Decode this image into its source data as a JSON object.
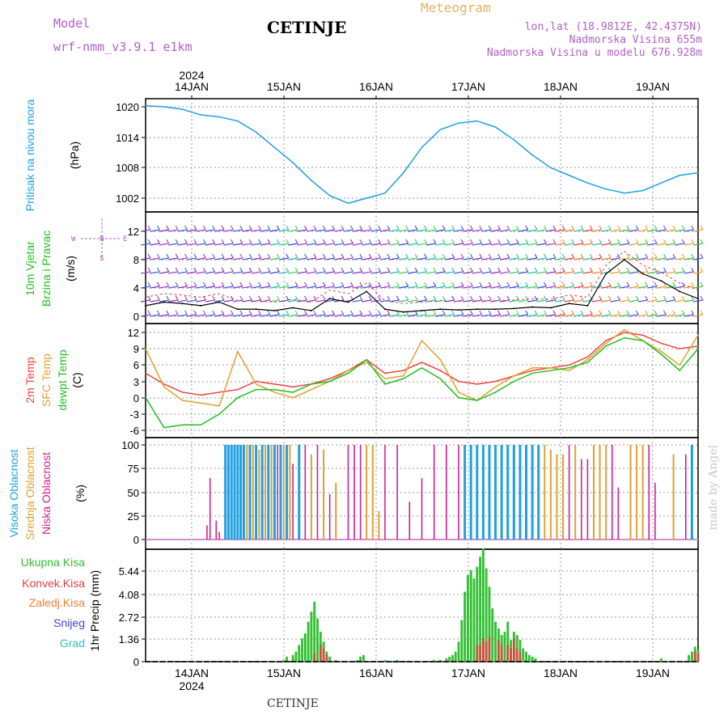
{
  "header": {
    "model_label": "Model",
    "model_name": "wrf-nmm_v3.9.1 e1km",
    "title": "CETINJE",
    "meteogram": "Meteogram",
    "lonlat": "lon,lat (18.9812E, 42.4375N)",
    "elev": "Nadmorska Visina 655m",
    "elev_model": "Nadmorska Visina u modelu 676.928m"
  },
  "footer": {
    "station": "CETINJE",
    "watermark": "made by Angel"
  },
  "colors": {
    "pressure": "#1fa0e0",
    "temp2m": "#f04040",
    "sfc": "#e0a030",
    "dew": "#20c020",
    "high": "#20a0e0",
    "mid": "#e0a030",
    "low": "#d02090",
    "precip": "#30c030",
    "conv": "#e04040"
  },
  "chart_data": [
    {
      "type": "line",
      "panel": "pressure",
      "ylabel_lines": [
        "Pritisak na nivou mora",
        "(hPa)"
      ],
      "yticks": [
        "1020",
        "1014",
        "1008",
        "1002"
      ],
      "ylim": [
        999,
        1022
      ],
      "x_days": [
        "14JAN",
        "15JAN",
        "16JAN",
        "17JAN",
        "18JAN",
        "19JAN"
      ],
      "top_year": "2024",
      "x": [
        0,
        6,
        12,
        18,
        24,
        30,
        36,
        42,
        48,
        54,
        60,
        66,
        72,
        78,
        84,
        90,
        96,
        102,
        108,
        114,
        120,
        126,
        132,
        138,
        144,
        150,
        156,
        162,
        168,
        174,
        180
      ],
      "values": [
        1020.2,
        1020.0,
        1019.5,
        1018.4,
        1018.0,
        1017.2,
        1015.0,
        1012.0,
        1009.0,
        1005.5,
        1002.5,
        1001.0,
        1002.0,
        1003.0,
        1007.0,
        1012.0,
        1015.5,
        1016.8,
        1017.2,
        1016.0,
        1013.5,
        1010.5,
        1008.0,
        1006.5,
        1005.0,
        1003.8,
        1003.0,
        1003.5,
        1005.0,
        1006.5,
        1007.0
      ]
    },
    {
      "type": "line",
      "panel": "wind",
      "ylabel_lines": [
        "10m Vjetar",
        "Brzina i Pravac",
        "(m/s)"
      ],
      "compass": {
        "n": "N",
        "s": "S",
        "e": "E",
        "w": "W"
      },
      "yticks": [
        "12",
        "8",
        "4",
        "0"
      ],
      "ylim": [
        -1,
        14
      ],
      "x": [
        0,
        6,
        12,
        18,
        24,
        30,
        36,
        42,
        48,
        54,
        60,
        66,
        72,
        78,
        84,
        90,
        96,
        102,
        108,
        114,
        120,
        126,
        132,
        138,
        144,
        150,
        156,
        162,
        168,
        174,
        180
      ],
      "values": [
        1.5,
        2.0,
        1.8,
        1.5,
        2.0,
        1.0,
        1.0,
        0.8,
        1.2,
        0.8,
        2.5,
        2.0,
        3.5,
        1.0,
        0.6,
        0.8,
        1.0,
        0.9,
        1.0,
        1.0,
        1.1,
        1.3,
        1.2,
        1.8,
        1.5,
        6.0,
        8.0,
        6.0,
        5.0,
        3.5,
        2.5
      ]
    },
    {
      "type": "line",
      "panel": "temperature",
      "ylabel_lines": [
        "2m Temp",
        "SFC Temp",
        "dewpt Temp",
        "(C)"
      ],
      "yticks": [
        "12",
        "9",
        "6",
        "3",
        "0",
        "-3",
        "-6"
      ],
      "ylim": [
        -7,
        13
      ],
      "x": [
        0,
        6,
        12,
        18,
        24,
        30,
        36,
        42,
        48,
        54,
        60,
        66,
        72,
        78,
        84,
        90,
        96,
        102,
        108,
        114,
        120,
        126,
        132,
        138,
        144,
        150,
        156,
        162,
        168,
        174,
        180
      ],
      "series": [
        {
          "name": "2m Temp",
          "values": [
            4.5,
            2.5,
            1.0,
            0.5,
            1.0,
            1.5,
            3.0,
            2.5,
            2.0,
            2.5,
            3.5,
            5.0,
            7.0,
            4.5,
            5.0,
            6.5,
            5.0,
            3.0,
            2.5,
            3.0,
            4.0,
            5.0,
            5.5,
            6.0,
            7.5,
            10.5,
            12.0,
            11.5,
            10.0,
            9.0,
            9.5
          ]
        },
        {
          "name": "SFC Temp",
          "values": [
            9.0,
            2.0,
            -0.5,
            -1.0,
            -1.5,
            8.5,
            2.5,
            1.0,
            0.0,
            1.5,
            3.0,
            5.0,
            6.5,
            3.5,
            4.0,
            10.5,
            7.0,
            1.0,
            -0.5,
            2.0,
            4.0,
            5.5,
            5.5,
            5.0,
            7.0,
            10.0,
            12.5,
            10.5,
            8.5,
            6.0,
            11.5
          ]
        },
        {
          "name": "dewpt Temp",
          "values": [
            0.0,
            -5.5,
            -5.0,
            -5.0,
            -3.0,
            0.0,
            1.5,
            1.5,
            1.0,
            2.5,
            3.0,
            4.5,
            7.0,
            2.5,
            3.5,
            5.5,
            3.5,
            0.0,
            -0.5,
            1.0,
            3.0,
            4.5,
            5.0,
            5.5,
            6.5,
            9.5,
            11.0,
            10.5,
            8.0,
            5.0,
            9.0
          ]
        }
      ]
    },
    {
      "type": "bar",
      "panel": "cloud",
      "ylabel_lines": [
        "Visoka Oblacnost",
        "Srednja Oblacnost",
        "Niska Oblacnost",
        "(%)"
      ],
      "yticks": [
        "100",
        "75",
        "50",
        "25",
        "0"
      ],
      "ylim": [
        0,
        100
      ],
      "high": [
        [
          26,
          100
        ],
        [
          27,
          100
        ],
        [
          28,
          100
        ],
        [
          29,
          100
        ],
        [
          30,
          100
        ],
        [
          31,
          100
        ],
        [
          32,
          100
        ],
        [
          34,
          100
        ],
        [
          36,
          100
        ],
        [
          38,
          100
        ],
        [
          40,
          100
        ],
        [
          42,
          100
        ],
        [
          44,
          100
        ],
        [
          46,
          100
        ],
        [
          50,
          100
        ],
        [
          104,
          100
        ],
        [
          106,
          100
        ],
        [
          108,
          100
        ],
        [
          110,
          100
        ],
        [
          112,
          100
        ],
        [
          114,
          100
        ],
        [
          116,
          100
        ],
        [
          118,
          100
        ],
        [
          120,
          100
        ],
        [
          122,
          100
        ],
        [
          124,
          100
        ],
        [
          126,
          100
        ],
        [
          128,
          100
        ],
        [
          178,
          100
        ]
      ],
      "mid": [
        [
          33,
          100
        ],
        [
          35,
          100
        ],
        [
          37,
          95
        ],
        [
          39,
          100
        ],
        [
          41,
          100
        ],
        [
          45,
          100
        ],
        [
          47,
          100
        ],
        [
          54,
          90
        ],
        [
          58,
          95
        ],
        [
          62,
          60
        ],
        [
          72,
          100
        ],
        [
          74,
          100
        ],
        [
          76,
          30
        ],
        [
          130,
          100
        ],
        [
          132,
          95
        ],
        [
          134,
          90
        ],
        [
          136,
          90
        ],
        [
          140,
          100
        ],
        [
          146,
          100
        ],
        [
          148,
          100
        ],
        [
          150,
          100
        ],
        [
          158,
          100
        ],
        [
          160,
          100
        ],
        [
          162,
          100
        ],
        [
          172,
          90
        ]
      ],
      "low": [
        [
          20,
          15
        ],
        [
          21,
          65
        ],
        [
          23,
          20
        ],
        [
          24,
          8
        ],
        [
          43,
          100
        ],
        [
          48,
          80
        ],
        [
          52,
          100
        ],
        [
          56,
          100
        ],
        [
          60,
          48
        ],
        [
          66,
          100
        ],
        [
          68,
          100
        ],
        [
          70,
          100
        ],
        [
          78,
          100
        ],
        [
          82,
          100
        ],
        [
          86,
          40
        ],
        [
          90,
          65
        ],
        [
          94,
          100
        ],
        [
          98,
          100
        ],
        [
          102,
          100
        ],
        [
          138,
          100
        ],
        [
          142,
          85
        ],
        [
          144,
          85
        ],
        [
          152,
          100
        ],
        [
          154,
          55
        ],
        [
          164,
          100
        ],
        [
          166,
          60
        ],
        [
          176,
          90
        ]
      ]
    },
    {
      "type": "bar",
      "panel": "precip",
      "ylabel_lines": [
        "1hr Precip (mm)"
      ],
      "legend": [
        "Ukupna Kisa",
        "Konvek.Kisa",
        "Zaledj.Kisa",
        "Snijeg",
        "Grad"
      ],
      "yticks": [
        "5.44",
        "4.08",
        "2.72",
        "1.36",
        "0"
      ],
      "ylim": [
        0,
        6.8
      ],
      "total": [
        [
          45,
          0.1
        ],
        [
          46,
          0.3
        ],
        [
          48,
          0.4
        ],
        [
          49,
          0.6
        ],
        [
          50,
          1.0
        ],
        [
          51,
          1.4
        ],
        [
          52,
          1.7
        ],
        [
          53,
          2.4
        ],
        [
          54,
          3.0
        ],
        [
          55,
          3.6
        ],
        [
          56,
          2.6
        ],
        [
          57,
          1.8
        ],
        [
          58,
          1.2
        ],
        [
          59,
          0.6
        ],
        [
          60,
          0.3
        ],
        [
          62,
          0.1
        ],
        [
          69,
          0.1
        ],
        [
          70,
          0.3
        ],
        [
          71,
          0.4
        ],
        [
          78,
          0.1
        ],
        [
          82,
          0.1
        ],
        [
          94,
          0.1
        ],
        [
          96,
          0.1
        ],
        [
          98,
          0.2
        ],
        [
          99,
          0.3
        ],
        [
          100,
          0.4
        ],
        [
          101,
          0.6
        ],
        [
          102,
          1.2
        ],
        [
          103,
          2.5
        ],
        [
          104,
          4.2
        ],
        [
          105,
          5.2
        ],
        [
          106,
          5.5
        ],
        [
          107,
          5.0
        ],
        [
          108,
          5.7
        ],
        [
          109,
          6.3
        ],
        [
          110,
          6.8
        ],
        [
          111,
          5.6
        ],
        [
          112,
          4.5
        ],
        [
          113,
          3.2
        ],
        [
          114,
          2.4
        ],
        [
          115,
          2.0
        ],
        [
          116,
          1.6
        ],
        [
          117,
          1.8
        ],
        [
          118,
          2.4
        ],
        [
          119,
          1.3
        ],
        [
          120,
          1.8
        ],
        [
          121,
          1.6
        ],
        [
          122,
          1.3
        ],
        [
          123,
          0.8
        ],
        [
          124,
          0.6
        ],
        [
          125,
          0.4
        ],
        [
          126,
          0.3
        ],
        [
          127,
          0.2
        ],
        [
          168,
          0.2
        ],
        [
          177,
          0.4
        ],
        [
          178,
          0.6
        ],
        [
          179,
          0.9
        ],
        [
          180,
          0.7
        ]
      ],
      "conv": [
        [
          55,
          0.5
        ],
        [
          57,
          1.0
        ],
        [
          58,
          0.8
        ],
        [
          59,
          0.4
        ],
        [
          108,
          1.0
        ],
        [
          109,
          1.0
        ],
        [
          110,
          1.4
        ],
        [
          111,
          1.2
        ],
        [
          112,
          1.5
        ],
        [
          115,
          1.3
        ],
        [
          116,
          1.0
        ],
        [
          118,
          1.0
        ],
        [
          119,
          0.8
        ],
        [
          120,
          1.4
        ],
        [
          121,
          0.8
        ],
        [
          122,
          0.6
        ],
        [
          179,
          0.6
        ],
        [
          180,
          0.5
        ]
      ],
      "days_bottom": [
        "14JAN",
        "15JAN",
        "16JAN",
        "17JAN",
        "18JAN",
        "19JAN"
      ],
      "bottom_year": "2024"
    }
  ]
}
